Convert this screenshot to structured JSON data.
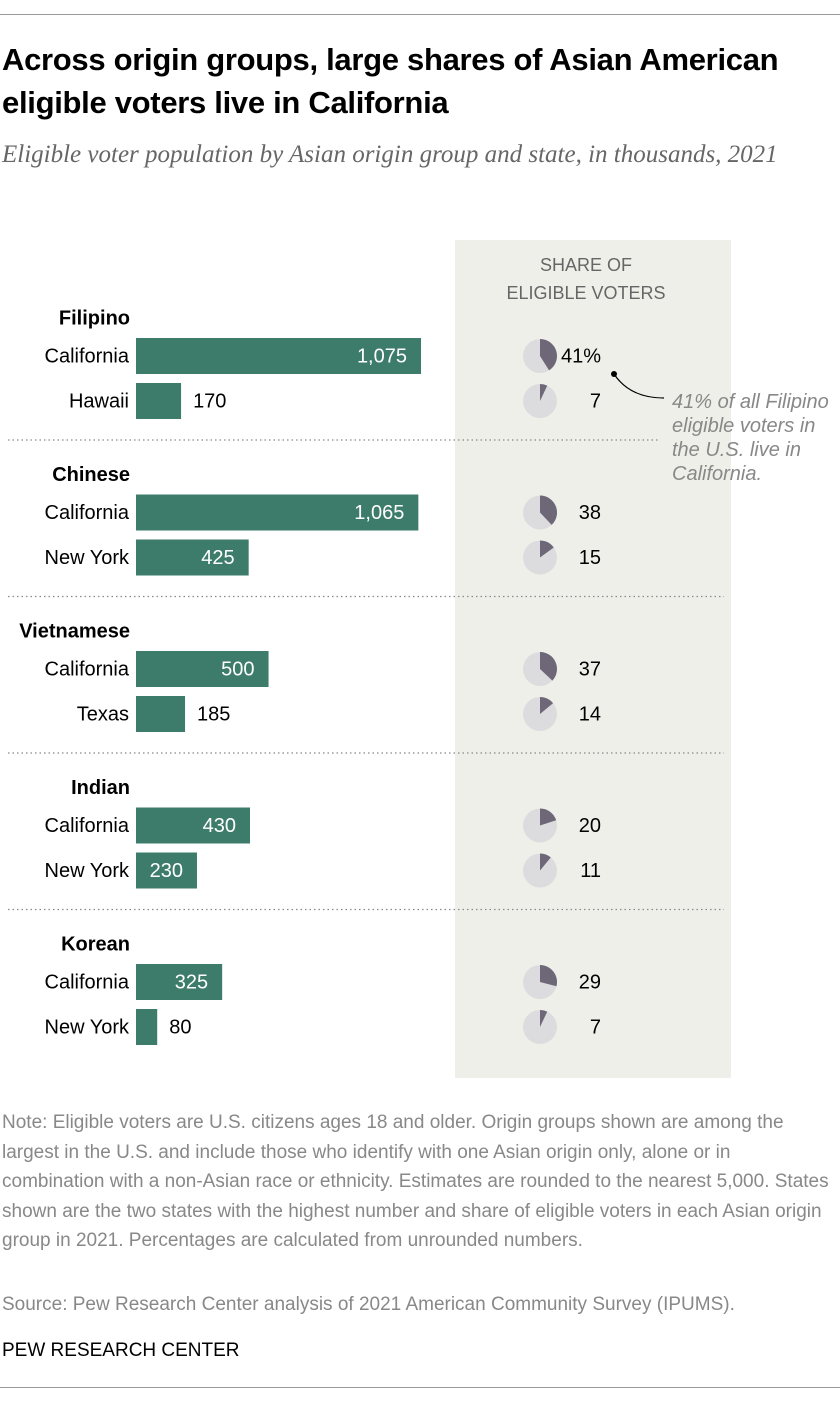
{
  "chart_data": {
    "type": "bar",
    "title": "Across origin groups, large shares of Asian American eligible voters live in California",
    "subtitle": "Eligible voter population by Asian origin group and state, in thousands, 2021",
    "share_header": [
      "SHARE OF",
      "ELIGIBLE VOTERS"
    ],
    "annotation": "41% of all Filipino eligible voters in the U.S. live in California.",
    "bar_color": "#3d7c6b",
    "pie_color": "#6e6778",
    "pie_background": "#dcdcde",
    "groups": [
      {
        "name": "Filipino",
        "categories": [
          "California",
          "Hawaii"
        ],
        "values": [
          1075,
          170
        ],
        "value_labels": [
          "1,075",
          "170"
        ],
        "shares": [
          41,
          7
        ],
        "share_labels": [
          "41%",
          "7"
        ]
      },
      {
        "name": "Chinese",
        "categories": [
          "California",
          "New York"
        ],
        "values": [
          1065,
          425
        ],
        "value_labels": [
          "1,065",
          "425"
        ],
        "shares": [
          38,
          15
        ],
        "share_labels": [
          "38",
          "15"
        ]
      },
      {
        "name": "Vietnamese",
        "categories": [
          "California",
          "Texas"
        ],
        "values": [
          500,
          185
        ],
        "value_labels": [
          "500",
          "185"
        ],
        "shares": [
          37,
          14
        ],
        "share_labels": [
          "37",
          "14"
        ]
      },
      {
        "name": "Indian",
        "categories": [
          "California",
          "New York"
        ],
        "values": [
          430,
          230
        ],
        "value_labels": [
          "430",
          "230"
        ],
        "shares": [
          20,
          11
        ],
        "share_labels": [
          "20",
          "11"
        ]
      },
      {
        "name": "Korean",
        "categories": [
          "California",
          "New York"
        ],
        "values": [
          325,
          80
        ],
        "value_labels": [
          "325",
          "80"
        ],
        "shares": [
          29,
          7
        ],
        "share_labels": [
          "29",
          "7"
        ]
      }
    ],
    "note": "Note: Eligible voters are U.S. citizens ages 18 and older. Origin groups shown are among the largest in the U.S. and include those who identify with one Asian origin only, alone or in combination with a non-Asian race or ethnicity. Estimates are rounded to the nearest 5,000. States shown are the two states with the highest number and share of eligible voters in each Asian origin group in 2021. Percentages are calculated from unrounded numbers.",
    "source": "Source: Pew Research Center analysis of 2021 American Community Survey (IPUMS).",
    "footer": "PEW RESEARCH CENTER"
  }
}
